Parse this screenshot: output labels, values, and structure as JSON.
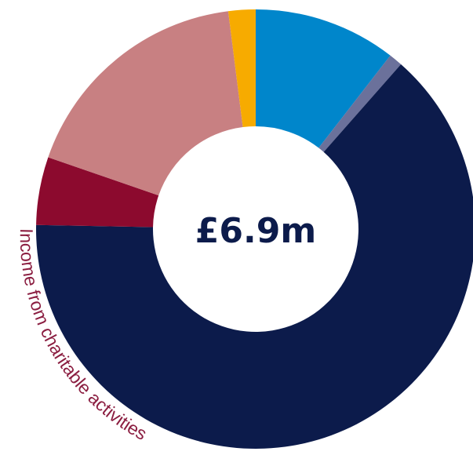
{
  "chart_data": {
    "type": "pie",
    "donut": true,
    "center_label": "£6.9m",
    "annotations": [
      "Income from charitable activities"
    ],
    "slices": [
      {
        "value": 10.5,
        "color": "#0086cb"
      },
      {
        "value": 1.0,
        "color": "#6b719b"
      },
      {
        "value": 63.8,
        "color": "#0c1b4b"
      },
      {
        "value": 5.0,
        "color": "#8c0a2e"
      },
      {
        "value": 17.7,
        "color": "#c88082"
      },
      {
        "value": 2.0,
        "color": "#f7ab00"
      }
    ]
  }
}
